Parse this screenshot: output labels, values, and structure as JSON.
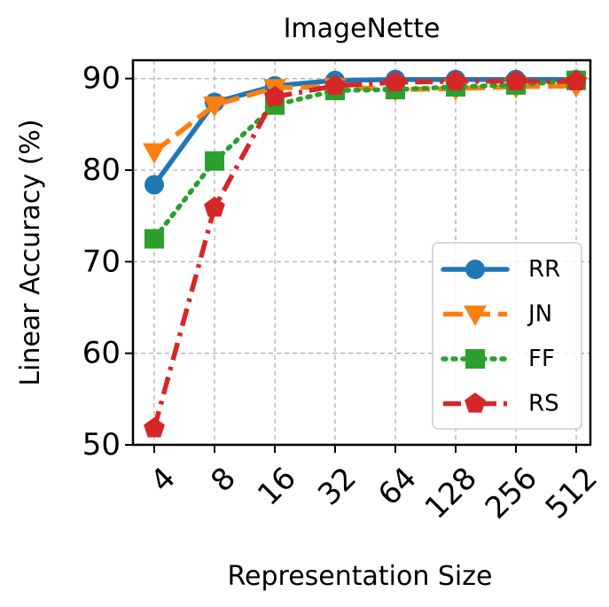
{
  "chart_data": {
    "type": "line",
    "title": "ImageNette",
    "xlabel": "Representation Size",
    "ylabel": "Linear Accuracy (%)",
    "categories": [
      "4",
      "8",
      "16",
      "32",
      "64",
      "128",
      "256",
      "512"
    ],
    "yticks": [
      "50",
      "60",
      "70",
      "80",
      "90"
    ],
    "ylim": [
      50,
      92
    ],
    "grid": true,
    "legend_position": "lower right",
    "series": [
      {
        "name": "RR",
        "color": "#1f77b4",
        "marker": "circle",
        "linestyle": "solid",
        "values": [
          78.4,
          87.4,
          89.2,
          89.8,
          89.9,
          89.9,
          89.9,
          89.9
        ]
      },
      {
        "name": "JN",
        "color": "#ff7f0e",
        "marker": "triangle-down",
        "linestyle": "dashed",
        "values": [
          82.0,
          87.1,
          89.0,
          89.1,
          88.8,
          88.9,
          89.1,
          89.2
        ]
      },
      {
        "name": "FF",
        "color": "#2ca02c",
        "marker": "square",
        "linestyle": "dotted",
        "values": [
          72.5,
          81.0,
          87.1,
          88.7,
          88.8,
          89.1,
          89.3,
          89.8
        ]
      },
      {
        "name": "RS",
        "color": "#d62728",
        "marker": "pentagon",
        "linestyle": "dashdot",
        "values": [
          51.8,
          75.9,
          88.0,
          89.2,
          89.6,
          89.7,
          89.7,
          89.7
        ]
      }
    ]
  }
}
